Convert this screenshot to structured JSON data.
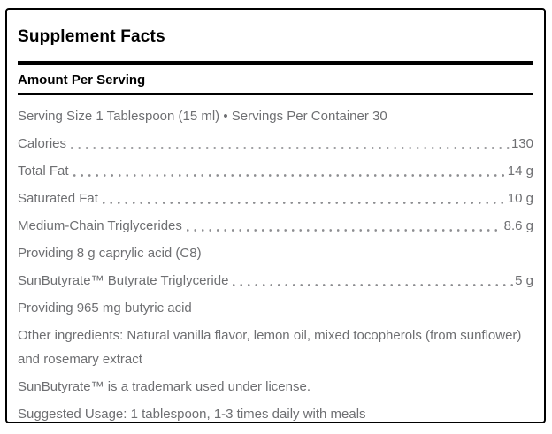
{
  "panel": {
    "title": "Supplement Facts",
    "section_header": "Amount Per Serving",
    "serving_line": "Serving Size 1 Tablespoon (15 ml) • Servings Per Container 30",
    "rows": {
      "calories": {
        "label": "Calories",
        "value": "130"
      },
      "total_fat": {
        "label": "Total Fat",
        "value": "14 g"
      },
      "saturated_fat": {
        "label": "Saturated Fat",
        "value": "10 g"
      },
      "mct": {
        "label": "Medium-Chain Triglycerides",
        "value": "8.6 g"
      },
      "caprylic": {
        "label": "Providing 8 g caprylic acid (C8)"
      },
      "sunbutyrate": {
        "label": "SunButyrate™ Butyrate Triglyceride",
        "value": "5 g"
      },
      "butyric": {
        "label": "Providing 965 mg butyric acid"
      },
      "other_ingredients": {
        "label": "Other ingredients: Natural vanilla flavor, lemon oil, mixed tocopherols (from sunflower) and rosemary extract"
      },
      "trademark": {
        "label": "SunButyrate™ is a trademark used under license."
      },
      "suggested_usage": {
        "label": "Suggested Usage: 1 tablespoon, 1-3 times daily with meals"
      }
    },
    "colors": {
      "heading": "#000000",
      "body_text": "#6e6f72",
      "rule": "#000000",
      "dots": "#8d8e91",
      "border": "#000000"
    }
  }
}
